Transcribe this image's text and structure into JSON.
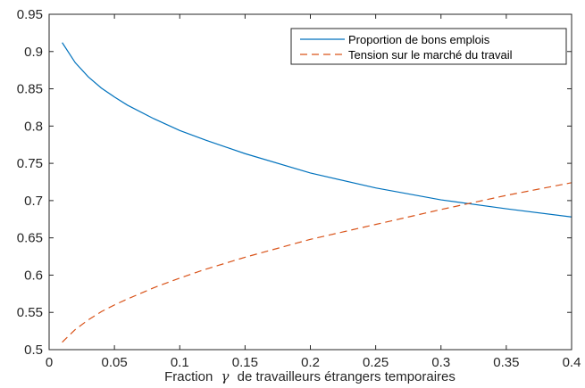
{
  "chart_data": {
    "type": "line",
    "xlabel_prefix": "Fraction",
    "xlabel_symbol": "γ",
    "xlabel_suffix": "de travailleurs étrangers temporaires",
    "ylabel": "",
    "xlim": [
      0,
      0.4
    ],
    "ylim": [
      0.5,
      0.95
    ],
    "xticks": [
      0,
      0.05,
      0.1,
      0.15,
      0.2,
      0.25,
      0.3,
      0.35,
      0.4
    ],
    "xtick_labels": [
      "0",
      "0.05",
      "0.1",
      "0.15",
      "0.2",
      "0.25",
      "0.3",
      "0.35",
      "0.4"
    ],
    "yticks": [
      0.5,
      0.55,
      0.6,
      0.65,
      0.7,
      0.75,
      0.8,
      0.85,
      0.9,
      0.95
    ],
    "ytick_labels": [
      "0.5",
      "0.55",
      "0.6",
      "0.65",
      "0.7",
      "0.75",
      "0.8",
      "0.85",
      "0.9",
      "0.95"
    ],
    "grid": false,
    "legend_position": "top-right",
    "series": [
      {
        "name": "Proportion de bons emplois",
        "color": "#0072BD",
        "style": "solid",
        "x": [
          0.01,
          0.02,
          0.03,
          0.04,
          0.05,
          0.06,
          0.08,
          0.1,
          0.12,
          0.15,
          0.2,
          0.25,
          0.3,
          0.35,
          0.4
        ],
        "y": [
          0.912,
          0.885,
          0.866,
          0.851,
          0.839,
          0.828,
          0.81,
          0.794,
          0.781,
          0.763,
          0.737,
          0.717,
          0.701,
          0.689,
          0.678
        ]
      },
      {
        "name": "Tension sur le marché du travail",
        "color": "#D95319",
        "style": "dashed",
        "x": [
          0.01,
          0.02,
          0.03,
          0.04,
          0.05,
          0.06,
          0.08,
          0.1,
          0.12,
          0.15,
          0.2,
          0.25,
          0.3,
          0.35,
          0.4
        ],
        "y": [
          0.51,
          0.527,
          0.54,
          0.551,
          0.56,
          0.568,
          0.583,
          0.596,
          0.608,
          0.624,
          0.648,
          0.668,
          0.688,
          0.707,
          0.724
        ]
      }
    ]
  }
}
